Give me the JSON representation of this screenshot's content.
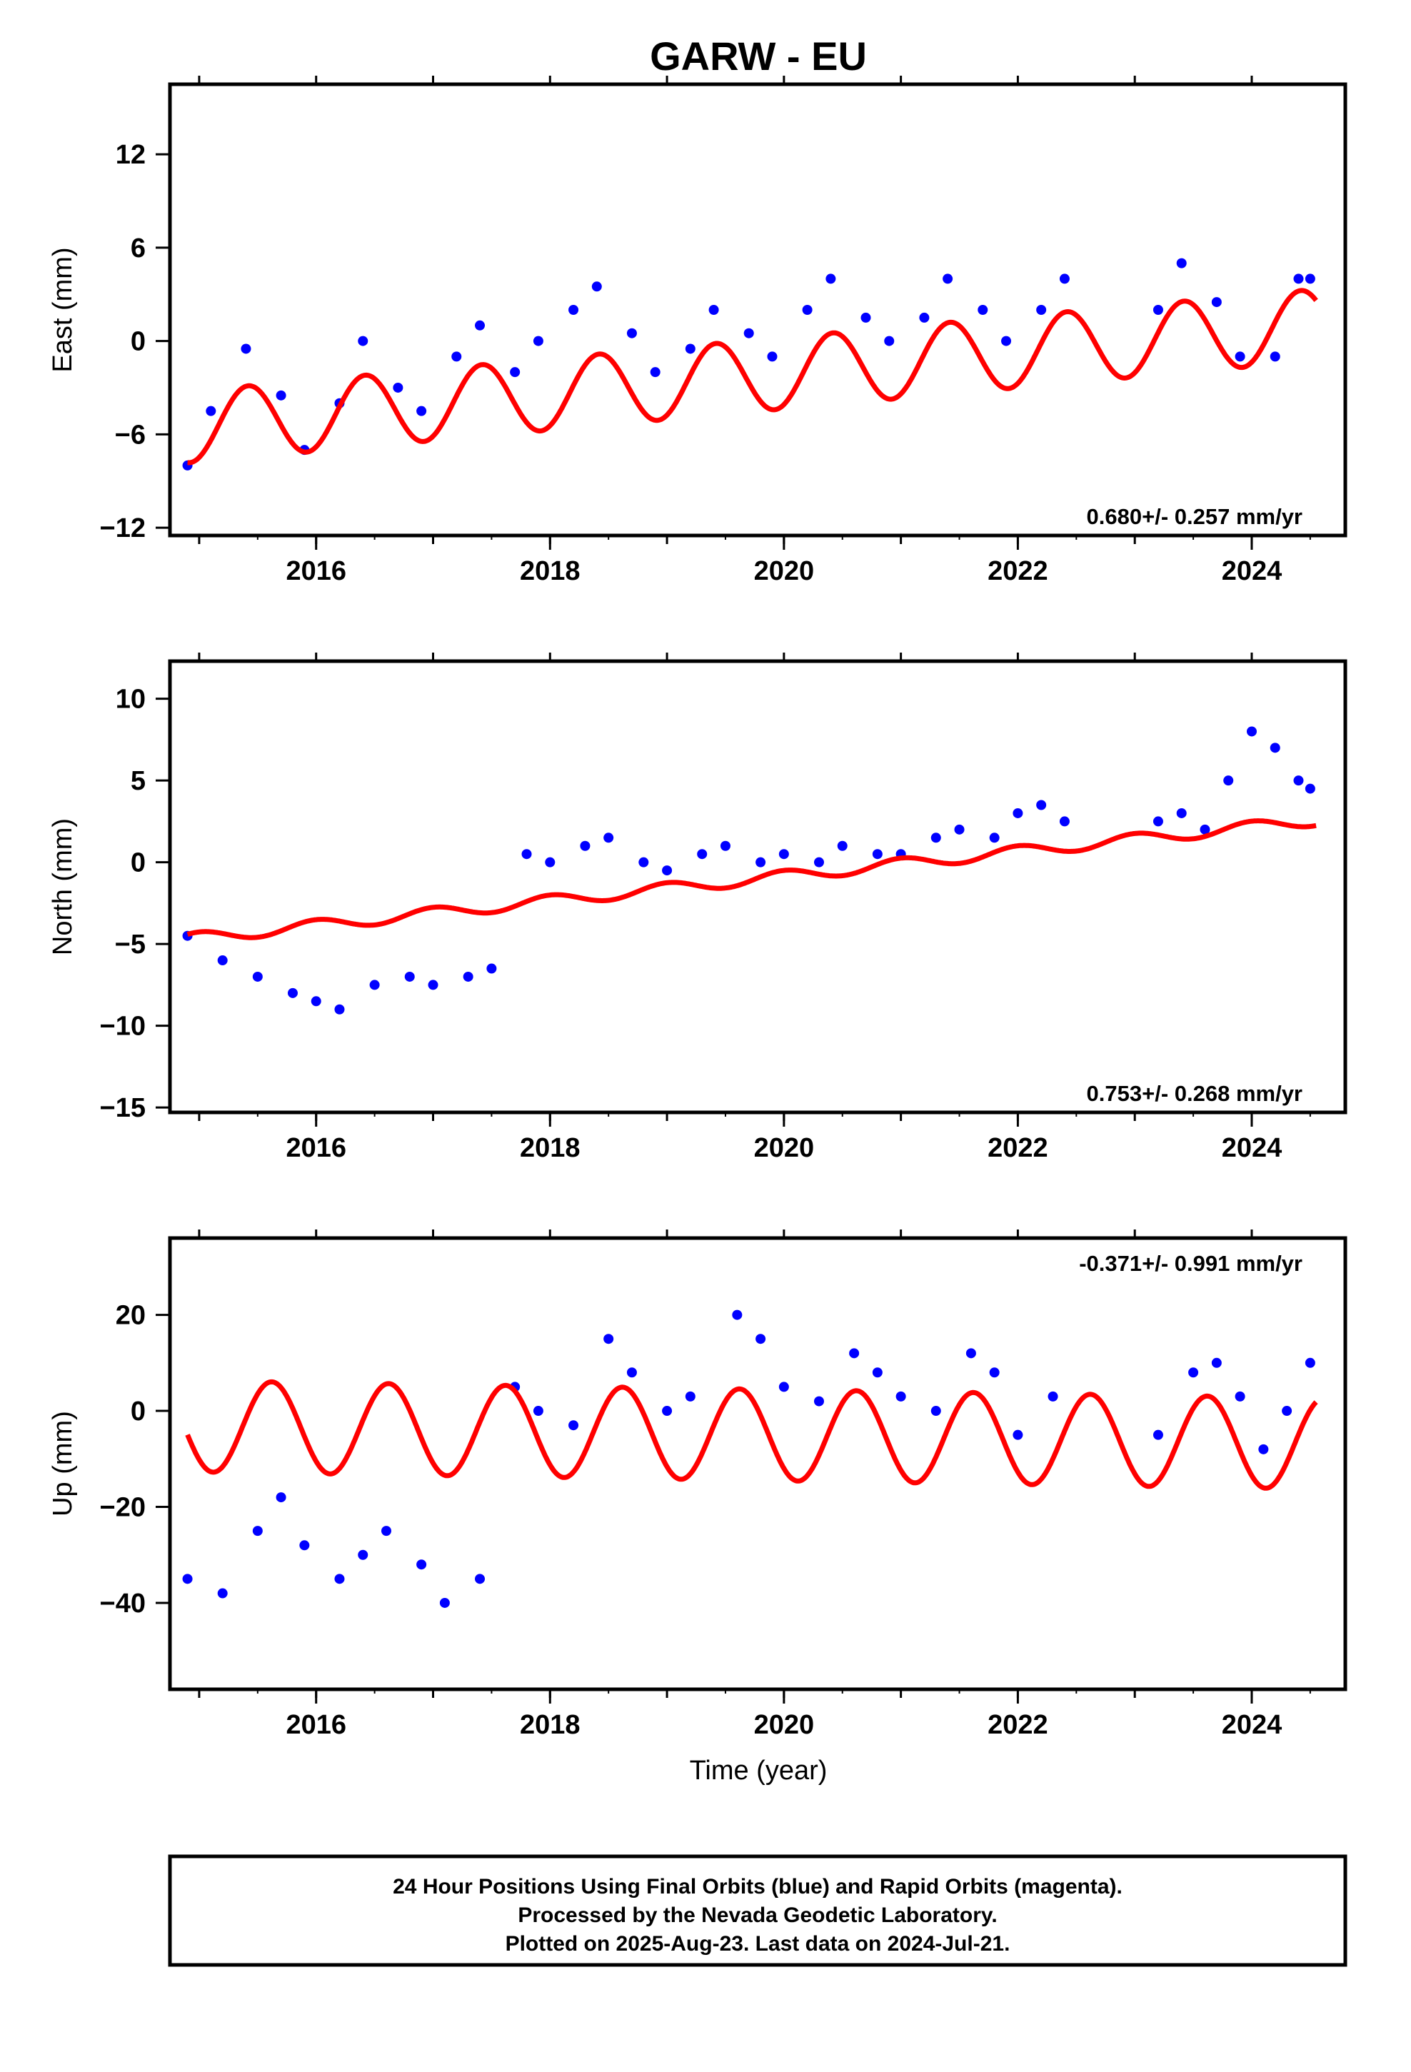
{
  "title": "GARW - EU",
  "colors": {
    "data": "#0000ff",
    "model": "#ff0000",
    "frame": "#000000"
  },
  "xlabel": "Time (year)",
  "chart_data": [
    {
      "type": "scatter",
      "ylabel": "East (mm)",
      "xlim": [
        2014.75,
        2024.8
      ],
      "ylim": [
        -12.5,
        16.5
      ],
      "xticks": [
        2016,
        2018,
        2020,
        2022,
        2024
      ],
      "yticks": [
        -12,
        -6,
        0,
        6,
        12
      ],
      "rate_label": "0.680+/- 0.257 mm/yr",
      "rate_position": "bottom-right",
      "series": [
        {
          "role": "observed",
          "marker": "dot",
          "color": "#0000ff",
          "x": [
            2014.9,
            2015.1,
            2015.4,
            2015.7,
            2015.9,
            2016.2,
            2016.4,
            2016.7,
            2016.9,
            2017.2,
            2017.4,
            2017.7,
            2017.9,
            2018.2,
            2018.4,
            2018.7,
            2018.9,
            2019.2,
            2019.4,
            2019.7,
            2019.9,
            2020.2,
            2020.4,
            2020.7,
            2020.9,
            2021.2,
            2021.4,
            2021.7,
            2021.9,
            2022.2,
            2022.4,
            2023.2,
            2023.4,
            2023.7,
            2023.9,
            2024.2,
            2024.4,
            2024.5
          ],
          "y": [
            -8.0,
            -4.5,
            -0.5,
            -3.5,
            -7.0,
            -4.0,
            0.0,
            -3.0,
            -4.5,
            -1.0,
            1.0,
            -2.0,
            0.0,
            2.0,
            3.5,
            0.5,
            -2.0,
            -0.5,
            2.0,
            0.5,
            -1.0,
            2.0,
            4.0,
            1.5,
            0.0,
            1.5,
            4.0,
            2.0,
            0.0,
            2.0,
            4.0,
            2.0,
            5.0,
            2.5,
            -1.0,
            -1.0,
            4.0,
            4.0
          ]
        },
        {
          "role": "model",
          "marker": "line",
          "color": "#ff0000",
          "trend": {
            "a0": -2.2,
            "a1": 0.68,
            "t0": 2019.8
          },
          "annual": {
            "amp": 2.3,
            "peak_year_fraction": 0.42
          }
        }
      ]
    },
    {
      "type": "scatter",
      "ylabel": "North (mm)",
      "xlim": [
        2014.75,
        2024.8
      ],
      "ylim": [
        -15.3,
        12.3
      ],
      "xticks": [
        2016,
        2018,
        2020,
        2022,
        2024
      ],
      "yticks": [
        -15,
        -10,
        -5,
        0,
        5,
        10
      ],
      "rate_label": "0.753+/- 0.268 mm/yr",
      "rate_position": "bottom-right",
      "series": [
        {
          "role": "observed",
          "marker": "dot",
          "color": "#0000ff",
          "x": [
            2014.9,
            2015.2,
            2015.5,
            2015.8,
            2016.0,
            2016.2,
            2016.5,
            2016.8,
            2017.0,
            2017.3,
            2017.5,
            2017.8,
            2018.0,
            2018.3,
            2018.5,
            2018.8,
            2019.0,
            2019.3,
            2019.5,
            2019.8,
            2020.0,
            2020.3,
            2020.5,
            2020.8,
            2021.0,
            2021.3,
            2021.5,
            2021.8,
            2022.0,
            2022.2,
            2022.4,
            2023.2,
            2023.4,
            2023.6,
            2023.8,
            2024.0,
            2024.2,
            2024.4,
            2024.5
          ],
          "y": [
            -4.5,
            -6.0,
            -7.0,
            -8.0,
            -8.5,
            -9.0,
            -7.5,
            -7.0,
            -7.5,
            -7.0,
            -6.5,
            0.5,
            0.0,
            1.0,
            1.5,
            0.0,
            -0.5,
            0.5,
            1.0,
            0.0,
            0.5,
            0.0,
            1.0,
            0.5,
            0.5,
            1.5,
            2.0,
            1.5,
            3.0,
            3.5,
            2.5,
            2.5,
            3.0,
            2.0,
            5.0,
            8.0,
            7.0,
            5.0,
            4.5
          ]
        },
        {
          "role": "model",
          "marker": "line",
          "color": "#ff0000",
          "trend": {
            "a0": -1.0,
            "a1": 0.753,
            "t0": 2019.8
          },
          "annual": {
            "amp": 0.35,
            "peak_year_fraction": 0.0
          }
        }
      ]
    },
    {
      "type": "scatter",
      "ylabel": "Up (mm)",
      "xlim": [
        2014.75,
        2024.8
      ],
      "ylim": [
        -58,
        36
      ],
      "xticks": [
        2016,
        2018,
        2020,
        2022,
        2024
      ],
      "yticks": [
        -40,
        -20,
        0,
        20
      ],
      "rate_label": "-0.371+/- 0.991 mm/yr",
      "rate_position": "top-right",
      "series": [
        {
          "role": "observed",
          "marker": "dot",
          "color": "#0000ff",
          "x": [
            2014.9,
            2015.2,
            2015.5,
            2015.7,
            2015.9,
            2016.2,
            2016.4,
            2016.6,
            2016.9,
            2017.1,
            2017.4,
            2017.7,
            2017.9,
            2018.2,
            2018.5,
            2018.7,
            2019.0,
            2019.2,
            2019.6,
            2019.8,
            2020.0,
            2020.3,
            2020.6,
            2020.8,
            2021.0,
            2021.3,
            2021.6,
            2021.8,
            2022.0,
            2022.3,
            2023.2,
            2023.5,
            2023.7,
            2023.9,
            2024.1,
            2024.3,
            2024.5
          ],
          "y": [
            -35.0,
            -38.0,
            -25.0,
            -18.0,
            -28.0,
            -35.0,
            -30.0,
            -25.0,
            -32.0,
            -40.0,
            -35.0,
            5.0,
            0.0,
            -3.0,
            15.0,
            8.0,
            0.0,
            3.0,
            20.0,
            15.0,
            5.0,
            2.0,
            12.0,
            8.0,
            3.0,
            0.0,
            12.0,
            8.0,
            -5.0,
            3.0,
            -5.0,
            8.0,
            10.0,
            3.0,
            -8.0,
            0.0,
            10.0
          ]
        },
        {
          "role": "model",
          "marker": "line",
          "color": "#ff0000",
          "trend": {
            "a0": -5.0,
            "a1": -0.371,
            "t0": 2019.8
          },
          "annual": {
            "amp": 9.5,
            "peak_year_fraction": 0.62
          }
        }
      ]
    }
  ],
  "footer": {
    "lines": [
      "24 Hour Positions Using Final Orbits (blue) and Rapid Orbits (magenta).",
      "Processed by the Nevada Geodetic Laboratory.",
      "Plotted on 2025-Aug-23. Last data on 2024-Jul-21."
    ]
  }
}
